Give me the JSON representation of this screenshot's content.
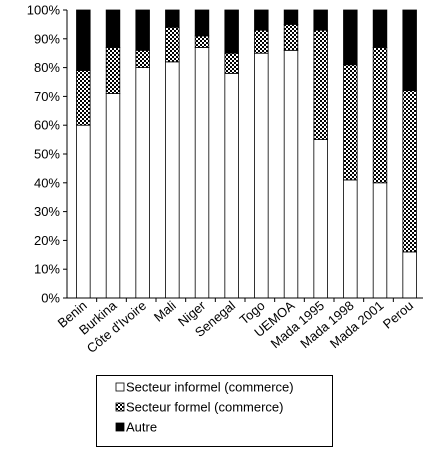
{
  "chart_data": {
    "type": "bar",
    "stacked": true,
    "percent": true,
    "categories": [
      "Benin",
      "Burkina",
      "Côte d'Ivoire",
      "Mali",
      "Niger",
      "Senegal",
      "Togo",
      "UEMOA",
      "Mada 1995",
      "Mada 1998",
      "Mada 2001",
      "Perou"
    ],
    "series": [
      {
        "name": "Secteur informel (commerce)",
        "pattern": "white",
        "color": "#ffffff",
        "values": [
          60,
          71,
          80,
          82,
          87,
          78,
          85,
          86,
          55,
          41,
          40,
          16
        ]
      },
      {
        "name": "Secteur formel (commerce)",
        "pattern": "checker",
        "color": "#000000",
        "values": [
          19,
          16,
          6,
          12,
          4,
          7,
          8,
          9,
          38,
          40,
          47,
          56
        ]
      },
      {
        "name": "Autre",
        "pattern": "black",
        "color": "#000000",
        "values": [
          21,
          13,
          14,
          6,
          9,
          15,
          7,
          5,
          7,
          19,
          13,
          28
        ]
      }
    ],
    "ylim": [
      0,
      100
    ],
    "yticks": [
      "0%",
      "10%",
      "20%",
      "30%",
      "40%",
      "50%",
      "60%",
      "70%",
      "80%",
      "90%",
      "100%"
    ],
    "title": "",
    "xlabel": "",
    "ylabel": "",
    "grid": false,
    "legend_position": "bottom"
  }
}
